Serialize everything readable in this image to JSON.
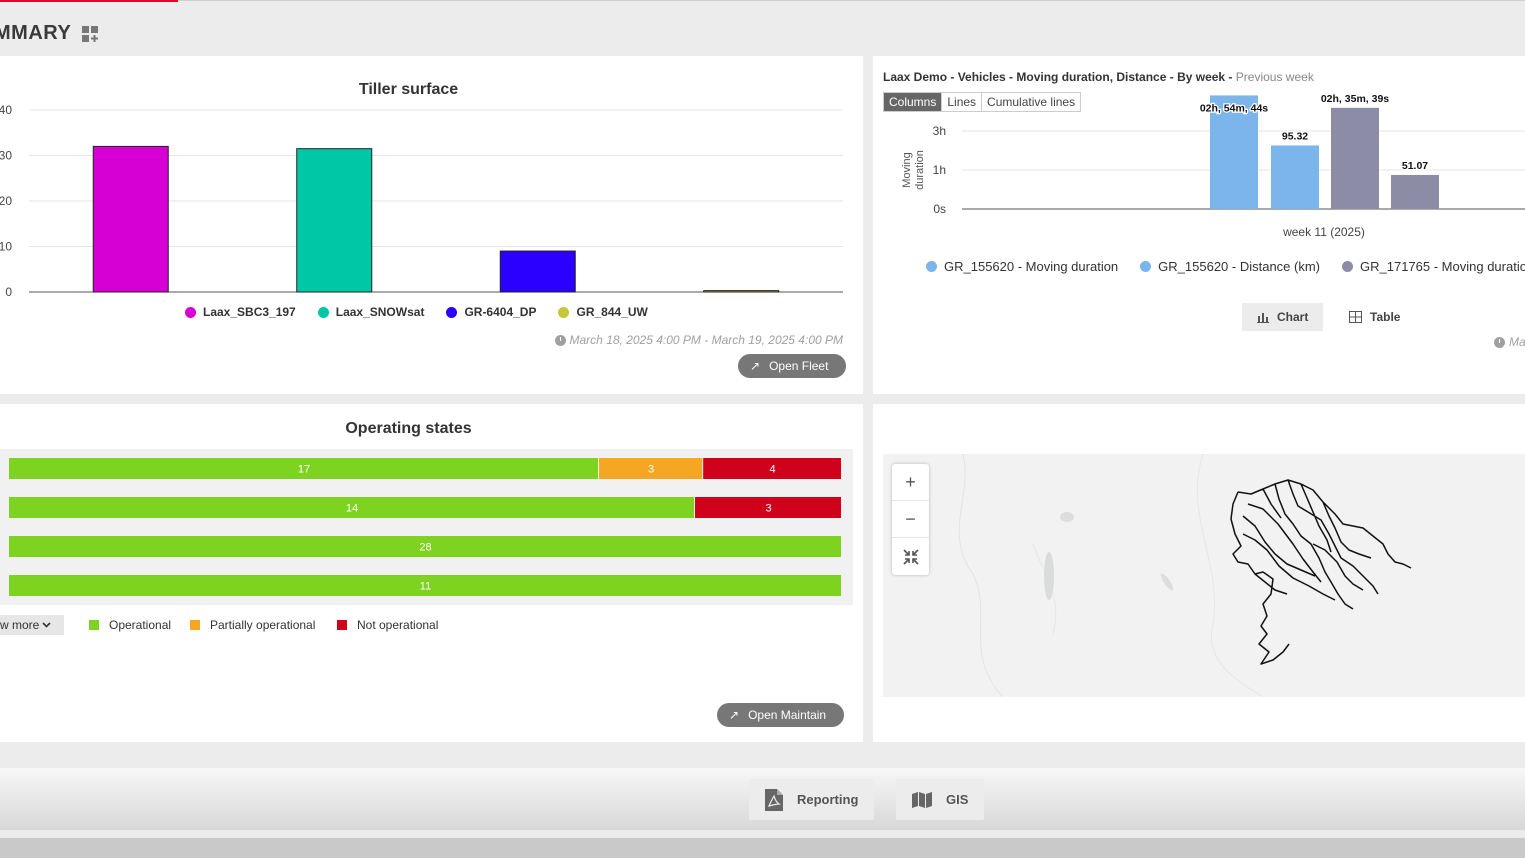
{
  "page": {
    "title": "MMARY"
  },
  "tiller": {
    "title": "Tiller surface",
    "chart_data": {
      "type": "bar",
      "title": "Tiller surface",
      "xlabel": "",
      "ylabel": "",
      "ylim": [
        0,
        40
      ],
      "yticks": [
        "0",
        "10",
        "20",
        "30",
        "40"
      ],
      "grid": true,
      "legend_position": "bottom",
      "series": [
        {
          "name": "Laax_SBC3_197",
          "values": [
            32
          ],
          "color": "#d600d4"
        },
        {
          "name": "Laax_SNOWsat",
          "values": [
            31.5
          ],
          "color": "#00c8a6"
        },
        {
          "name": "GR-6404_DP",
          "values": [
            9
          ],
          "color": "#2b00ff"
        },
        {
          "name": "GR_844_UW",
          "values": [
            0.3
          ],
          "color": "#c7c63a"
        }
      ]
    },
    "timestamp": "March 18, 2025 4:00 PM - March 19, 2025 4:00 PM",
    "open_button": "Open Fleet"
  },
  "vehicles": {
    "title_bold": "Laax Demo - Vehicles - Moving duration, Distance - By week -",
    "title_muted": "Previous week",
    "toggles": [
      "Columns",
      "Lines",
      "Cumulative lines"
    ],
    "active_toggle": "Columns",
    "chart_data": {
      "type": "bar",
      "xlabel": "week 11 (2025)",
      "ylabel": "Moving duration",
      "yticks": [
        "0s",
        "1h",
        "3h"
      ],
      "categories": [
        "week 11 (2025)"
      ],
      "legend_position": "bottom",
      "series": [
        {
          "name": "GR_155620 - Moving duration",
          "color": "#7cb5ec",
          "value_seconds": 10484,
          "label": "02h, 54m, 44s"
        },
        {
          "name": "GR_155620 - Distance (km)",
          "color": "#7cb5ec",
          "value": 95.32,
          "label": "95.32"
        },
        {
          "name": "GR_171765 - Moving duration",
          "color": "#8d8ca7",
          "value_seconds": 9339,
          "label": "02h, 35m, 39s"
        },
        {
          "name": "",
          "color": "#8d8ca7",
          "value": 51.07,
          "label": "51.07"
        }
      ]
    },
    "legend": [
      {
        "name": "GR_155620 - Moving duration",
        "color": "#7cb5ec"
      },
      {
        "name": "GR_155620 - Distance (km)",
        "color": "#7cb5ec"
      },
      {
        "name": "GR_171765 - Moving duratio",
        "color": "#8d8ca7"
      }
    ],
    "buttons": {
      "chart": "Chart",
      "table": "Table"
    },
    "timestamp_partial": "Ma"
  },
  "states": {
    "title": "Operating states",
    "chart_data": {
      "type": "bar",
      "orientation": "horizontal",
      "stacked": true,
      "categories": [
        "",
        "",
        "",
        ""
      ],
      "series": [
        {
          "name": "Operational",
          "color": "#7ed321",
          "values": [
            17,
            14,
            28,
            11
          ]
        },
        {
          "name": "Partially operational",
          "color": "#f5a623",
          "values": [
            3,
            0,
            0,
            0
          ]
        },
        {
          "name": "Not operational",
          "color": "#d0021b",
          "values": [
            4,
            3,
            0,
            0
          ]
        }
      ],
      "legend_position": "bottom"
    },
    "show_more": "w more",
    "legend": [
      {
        "name": "Operational",
        "color": "#7ed321"
      },
      {
        "name": "Partially operational",
        "color": "#f5a623"
      },
      {
        "name": "Not operational",
        "color": "#d0021b"
      }
    ],
    "open_button": "Open Maintain"
  },
  "map": {
    "zoom_in": "+",
    "zoom_out": "−"
  },
  "bottom": {
    "reporting": "Reporting",
    "gis": "GIS"
  }
}
